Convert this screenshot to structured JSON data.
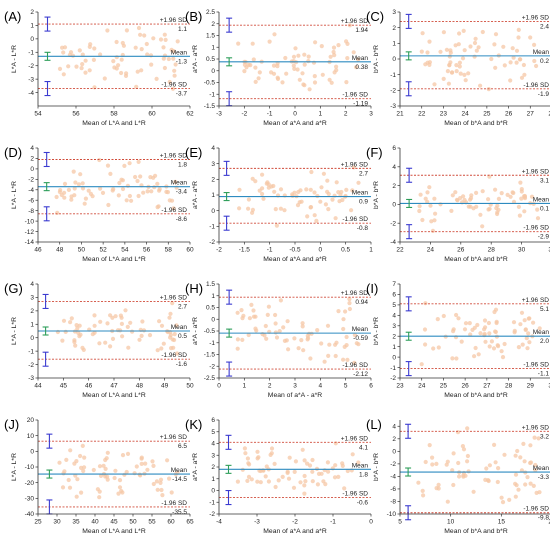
{
  "colors": {
    "sd_line": "#d04b3a",
    "mean_line": "#2e8bc0",
    "points": "#f6c7a6",
    "upper_err": "#3b3bd0",
    "mean_err": "#2e9e5a",
    "axis": "#333333"
  },
  "chart_data": [
    {
      "type": "scatter",
      "label": "(A)",
      "xlabel": "Mean of L*A and L*R",
      "ylabel": "L*A - L*R",
      "xlim": [
        54,
        62
      ],
      "ylim": [
        -5,
        2
      ],
      "xticks": [
        54,
        56,
        58,
        60,
        62
      ],
      "yticks": [
        -4,
        -3,
        -2,
        -1,
        0,
        1,
        2
      ],
      "upper_sd": 1.1,
      "mean": -1.3,
      "lower_sd": -3.7,
      "upper_sd_text": "1.1",
      "mean_text": "-1.3",
      "lower_sd_text": "-3.7",
      "errbar_x": 54.5
    },
    {
      "type": "scatter",
      "label": "(B)",
      "xlabel": "Mean of a*A and a*R",
      "ylabel": "a*A - a*R",
      "xlim": [
        -3,
        3
      ],
      "ylim": [
        -1.5,
        2.5
      ],
      "xticks": [
        -3,
        -2,
        -1,
        0,
        1,
        2,
        3
      ],
      "yticks": [
        -1.5,
        -1.0,
        -0.5,
        0.0,
        0.5,
        1.0,
        1.5,
        2.0,
        2.5
      ],
      "upper_sd": 1.94,
      "mean": 0.38,
      "lower_sd": -1.19,
      "upper_sd_text": "1.94",
      "mean_text": "0.38",
      "lower_sd_text": "-1.19",
      "errbar_x": -2.6
    },
    {
      "type": "scatter",
      "label": "(C)",
      "xlabel": "Mean of b*A and b*R",
      "ylabel": "b*A - b*R",
      "xlim": [
        21,
        28
      ],
      "ylim": [
        -3,
        3
      ],
      "xticks": [
        21,
        22,
        23,
        24,
        25,
        26,
        27,
        28
      ],
      "yticks": [
        -3,
        -2,
        -1,
        0,
        1,
        2,
        3
      ],
      "upper_sd": 2.4,
      "mean": 0.2,
      "lower_sd": -1.9,
      "upper_sd_text": "2.4",
      "mean_text": "0.2",
      "lower_sd_text": "-1.9",
      "errbar_x": 21.4
    },
    {
      "type": "scatter",
      "label": "(D)",
      "xlabel": "Mean of L*A and L*R",
      "ylabel": "L*A - L*R",
      "xlim": [
        46,
        60
      ],
      "ylim": [
        -14,
        4
      ],
      "xticks": [
        46,
        48,
        50,
        52,
        54,
        56,
        58,
        60
      ],
      "yticks": [
        -14,
        -12,
        -10,
        -8,
        -6,
        -4,
        -2,
        0,
        2,
        4
      ],
      "upper_sd": 1.8,
      "mean": -3.4,
      "lower_sd": -8.6,
      "upper_sd_text": "1.8",
      "mean_text": "-3.4",
      "lower_sd_text": "-8.6",
      "errbar_x": 46.8
    },
    {
      "type": "scatter",
      "label": "(E)",
      "xlabel": "Mean of a*A and a*R",
      "ylabel": "a*A - a*R",
      "xlim": [
        -2,
        1
      ],
      "ylim": [
        -2,
        4
      ],
      "xticks": [
        -2.0,
        -1.5,
        -1.0,
        -0.5,
        0.0,
        0.5,
        1.0
      ],
      "yticks": [
        -2,
        -1,
        0,
        1,
        2,
        3,
        4
      ],
      "upper_sd": 2.7,
      "mean": 0.9,
      "lower_sd": -0.8,
      "upper_sd_text": "2.7",
      "mean_text": "0.9",
      "lower_sd_text": "-0.8",
      "errbar_x": -1.85
    },
    {
      "type": "scatter",
      "label": "(F)",
      "xlabel": "Mean of b*A and b*R",
      "ylabel": "b*A - b*R",
      "xlim": [
        22,
        32
      ],
      "ylim": [
        -4,
        6
      ],
      "xticks": [
        22,
        24,
        26,
        28,
        30,
        32
      ],
      "yticks": [
        -4,
        -2,
        0,
        2,
        4,
        6
      ],
      "upper_sd": 3.1,
      "mean": 0.1,
      "lower_sd": -2.9,
      "upper_sd_text": "3.1",
      "mean_text": "0.1",
      "lower_sd_text": "-2.9",
      "errbar_x": 22.6
    },
    {
      "type": "scatter",
      "label": "(G)",
      "xlabel": "Mean of L*A and L*R",
      "ylabel": "L*A - L*R",
      "xlim": [
        44,
        50
      ],
      "ylim": [
        -3,
        4
      ],
      "xticks": [
        44,
        45,
        46,
        47,
        48,
        49,
        50
      ],
      "yticks": [
        -3,
        -2,
        -1,
        0,
        1,
        2,
        3,
        4
      ],
      "upper_sd": 2.7,
      "mean": 0.5,
      "lower_sd": -1.6,
      "upper_sd_text": "2.7",
      "mean_text": "0.5",
      "lower_sd_text": "-1.6",
      "errbar_x": 44.3
    },
    {
      "type": "scatter",
      "label": "(H)",
      "xlabel": "Mean of a*A - a*R",
      "ylabel": "a*A - a*R",
      "xlim": [
        0,
        6
      ],
      "ylim": [
        -2.5,
        1.5
      ],
      "xticks": [
        0,
        1,
        2,
        3,
        4,
        5,
        6
      ],
      "yticks": [
        -2.5,
        -2.0,
        -1.5,
        -1.0,
        -0.5,
        0.0,
        0.5,
        1.0,
        1.5
      ],
      "upper_sd": 0.94,
      "mean": -0.59,
      "lower_sd": -2.12,
      "upper_sd_text": "0.94",
      "mean_text": "-0.59",
      "lower_sd_text": "-2.12",
      "errbar_x": 0.4
    },
    {
      "type": "scatter",
      "label": "(I)",
      "xlabel": "Mean of b*A and b*R",
      "ylabel": "b*A - b*R",
      "xlim": [
        23,
        30
      ],
      "ylim": [
        -2,
        7
      ],
      "xticks": [
        23,
        24,
        25,
        26,
        27,
        28,
        29,
        30
      ],
      "yticks": [
        -2,
        -1,
        0,
        1,
        2,
        3,
        4,
        5,
        6,
        7
      ],
      "upper_sd": 5.1,
      "mean": 2.0,
      "lower_sd": -1.1,
      "upper_sd_text": "5.1",
      "mean_text": "2.0",
      "lower_sd_text": "-1.1",
      "errbar_x": 23.4
    },
    {
      "type": "scatter",
      "label": "(J)",
      "xlabel": "Mean of L*A and L*R",
      "ylabel": "L*A - L*R",
      "xlim": [
        25,
        65
      ],
      "ylim": [
        -40,
        20
      ],
      "xticks": [
        25,
        30,
        35,
        40,
        45,
        50,
        55,
        60,
        65
      ],
      "yticks": [
        -40,
        -30,
        -20,
        -10,
        0,
        10,
        20
      ],
      "upper_sd": 6.5,
      "mean": -14.5,
      "lower_sd": -35.5,
      "upper_sd_text": "6.5",
      "mean_text": "-14.5",
      "lower_sd_text": "-35.5",
      "errbar_x": 28
    },
    {
      "type": "scatter",
      "label": "(K)",
      "xlabel": "Mean of a*A and a*R",
      "ylabel": "a*A - a*R",
      "xlim": [
        -4,
        0
      ],
      "ylim": [
        -2,
        6
      ],
      "xticks": [
        -4,
        -3,
        -2,
        -1,
        0
      ],
      "yticks": [
        -2,
        -1,
        0,
        1,
        2,
        3,
        4,
        5,
        6
      ],
      "upper_sd": 4.1,
      "mean": 1.8,
      "lower_sd": -0.6,
      "upper_sd_text": "4.1",
      "mean_text": "1.8",
      "lower_sd_text": "-0.6",
      "errbar_x": -3.75
    },
    {
      "type": "scatter",
      "label": "(L)",
      "xlabel": "Mean of b*A and b*R",
      "ylabel": "b*A - b*R",
      "xlim": [
        5,
        20
      ],
      "ylim": [
        -10,
        5
      ],
      "xticks": [
        5,
        10,
        15,
        20
      ],
      "yticks": [
        -10,
        -8,
        -6,
        -4,
        -2,
        0,
        2,
        4
      ],
      "upper_sd": 3.2,
      "mean": -3.3,
      "lower_sd": -9.8,
      "upper_sd_text": "3.2",
      "mean_text": "-3.3",
      "lower_sd_text": "-9.8",
      "errbar_x": 5.8
    }
  ],
  "labels": {
    "upper": "+1.96 SD",
    "mean": "Mean",
    "lower": "-1.96 SD"
  }
}
